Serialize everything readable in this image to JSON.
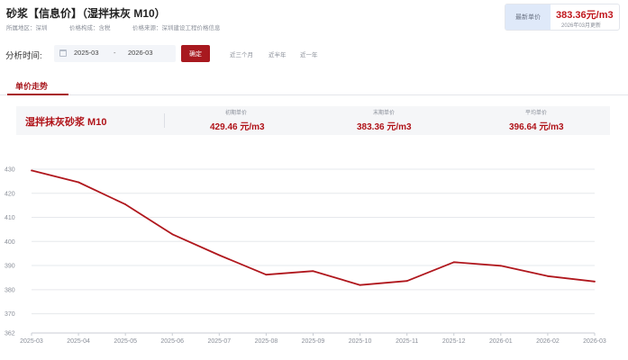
{
  "header": {
    "title": "砂浆【信息价】（湿拌抹灰 M10）",
    "region": "所属地区：深圳",
    "price_composition": "价格构成：含税",
    "price_source": "价格来源：深圳建设工程价格信息",
    "latest_label": "最新单价",
    "latest_price": "383.36元/m3",
    "latest_update": "2026年03月更新"
  },
  "filter": {
    "label": "分析时间:",
    "start": "2025-03",
    "separator": "-",
    "end": "2026-03",
    "confirm_label": "确定",
    "quick_options": [
      "近三个月",
      "近半年",
      "近一年"
    ]
  },
  "tabs": {
    "active_label": "单价走势"
  },
  "summary": {
    "name": "湿拌抹灰砂浆 M10",
    "stats": [
      {
        "label": "初期单价",
        "value": "429.46 元/m3"
      },
      {
        "label": "末期单价",
        "value": "383.36 元/m3"
      },
      {
        "label": "平均单价",
        "value": "396.64 元/m3"
      }
    ]
  },
  "chart_data": {
    "type": "line",
    "categories": [
      "2025-03",
      "2025-04",
      "2025-05",
      "2025-06",
      "2025-07",
      "2025-08",
      "2025-09",
      "2025-10",
      "2025-11",
      "2025-12",
      "2026-01",
      "2026-02",
      "2026-03"
    ],
    "series": [
      {
        "values": [
          429.46,
          424.6,
          415.4,
          403.0,
          394.3,
          386.2,
          387.7,
          381.9,
          383.6,
          391.4,
          389.9,
          385.6,
          383.36
        ]
      }
    ],
    "yticks": [
      362,
      370,
      380,
      390,
      400,
      410,
      420,
      430
    ],
    "ylim": [
      362,
      430
    ],
    "grid": true,
    "line_color": "#b0171d"
  }
}
